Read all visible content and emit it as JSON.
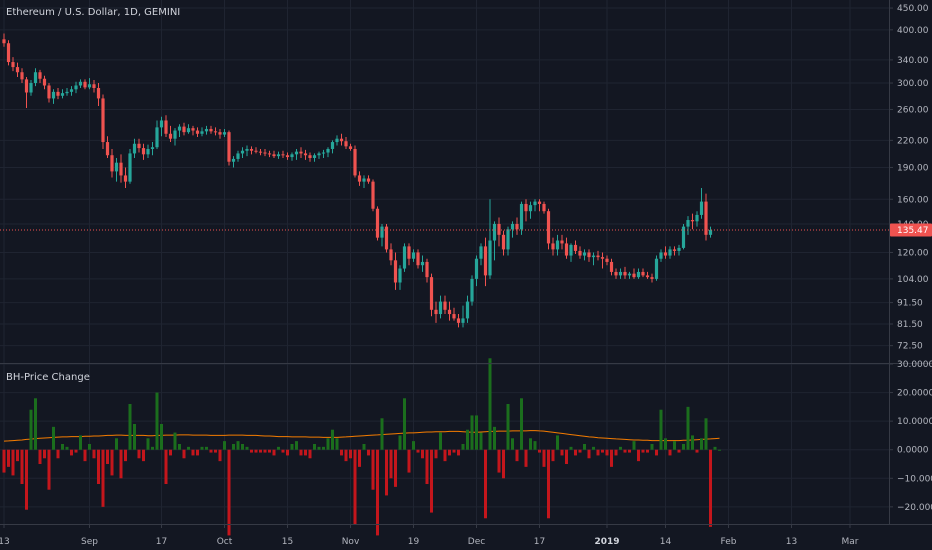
{
  "colors": {
    "background": "#131722",
    "grid": "#1f2431",
    "axis_text": "#b2b5be",
    "up": "#26a69a",
    "down": "#ef5350",
    "hist_up": "#1b6e1d",
    "hist_down": "#c4161c",
    "ma_line": "#f57c00",
    "last_price": "#ef5350"
  },
  "chart_data": [
    {
      "type": "candlestick",
      "title": "Ethereum / U.S. Dollar, 1D, GEMINI",
      "y_scale": "log",
      "ylim": [
        66,
        470
      ],
      "y_ticks": [
        "450.00",
        "400.00",
        "340.00",
        "300.00",
        "260.00",
        "220.00",
        "190.00",
        "160.00",
        "140.00",
        "120.00",
        "104.00",
        "91.50",
        "81.50",
        "72.50"
      ],
      "last_price": "135.47",
      "x_ticks": [
        "13",
        "Sep",
        "17",
        "Oct",
        "15",
        "Nov",
        "19",
        "Dec",
        "17",
        "2019",
        "14",
        "Feb",
        "13",
        "Mar"
      ],
      "x_ticks_bold": [
        "2019"
      ],
      "x_tick_day": [
        0,
        19,
        35,
        49,
        63,
        77,
        91,
        105,
        119,
        134,
        147,
        161,
        175,
        188
      ],
      "grid": true,
      "ohlc": [
        [
          380,
          392,
          365,
          372
        ],
        [
          372,
          378,
          330,
          336
        ],
        [
          336,
          345,
          320,
          327
        ],
        [
          327,
          335,
          310,
          318
        ],
        [
          318,
          325,
          300,
          306
        ],
        [
          306,
          310,
          262,
          285
        ],
        [
          285,
          305,
          280,
          300
        ],
        [
          300,
          325,
          295,
          318
        ],
        [
          318,
          322,
          300,
          307
        ],
        [
          307,
          312,
          290,
          296
        ],
        [
          296,
          300,
          270,
          276
        ],
        [
          276,
          290,
          268,
          286
        ],
        [
          286,
          292,
          275,
          280
        ],
        [
          280,
          290,
          276,
          284
        ],
        [
          284,
          292,
          280,
          286
        ],
        [
          286,
          295,
          280,
          290
        ],
        [
          290,
          302,
          284,
          296
        ],
        [
          296,
          306,
          292,
          302
        ],
        [
          302,
          306,
          290,
          293
        ],
        [
          293,
          308,
          290,
          298
        ],
        [
          298,
          305,
          285,
          292
        ],
        [
          292,
          300,
          265,
          276
        ],
        [
          276,
          282,
          210,
          218
        ],
        [
          218,
          225,
          200,
          203
        ],
        [
          203,
          210,
          180,
          186
        ],
        [
          186,
          200,
          176,
          195
        ],
        [
          195,
          204,
          175,
          182
        ],
        [
          182,
          190,
          170,
          176
        ],
        [
          176,
          210,
          174,
          205
        ],
        [
          205,
          222,
          200,
          216
        ],
        [
          216,
          222,
          206,
          211
        ],
        [
          211,
          216,
          198,
          204
        ],
        [
          204,
          215,
          200,
          210
        ],
        [
          210,
          218,
          203,
          212
        ],
        [
          212,
          245,
          210,
          236
        ],
        [
          236,
          250,
          225,
          245
        ],
        [
          245,
          252,
          224,
          228
        ],
        [
          228,
          238,
          218,
          222
        ],
        [
          222,
          235,
          214,
          232
        ],
        [
          232,
          240,
          224,
          237
        ],
        [
          237,
          242,
          226,
          230
        ],
        [
          230,
          240,
          228,
          235
        ],
        [
          235,
          238,
          226,
          232
        ],
        [
          232,
          236,
          224,
          228
        ],
        [
          228,
          236,
          225,
          231
        ],
        [
          231,
          238,
          227,
          234
        ],
        [
          234,
          238,
          228,
          231
        ],
        [
          231,
          236,
          226,
          230
        ],
        [
          230,
          234,
          222,
          227
        ],
        [
          227,
          234,
          224,
          230
        ],
        [
          230,
          232,
          192,
          196
        ],
        [
          196,
          202,
          190,
          199
        ],
        [
          199,
          208,
          196,
          205
        ],
        [
          205,
          212,
          200,
          208
        ],
        [
          208,
          214,
          202,
          210
        ],
        [
          210,
          213,
          204,
          208
        ],
        [
          208,
          212,
          205,
          207
        ],
        [
          207,
          210,
          203,
          206
        ],
        [
          206,
          210,
          202,
          205
        ],
        [
          205,
          208,
          201,
          204
        ],
        [
          204,
          208,
          200,
          202
        ],
        [
          202,
          207,
          199,
          204
        ],
        [
          204,
          208,
          200,
          203
        ],
        [
          203,
          206,
          198,
          201
        ],
        [
          201,
          206,
          197,
          204
        ],
        [
          204,
          210,
          198,
          207
        ],
        [
          207,
          212,
          200,
          205
        ],
        [
          205,
          209,
          198,
          203
        ],
        [
          203,
          206,
          196,
          200
        ],
        [
          200,
          205,
          196,
          203
        ],
        [
          203,
          207,
          199,
          205
        ],
        [
          205,
          209,
          200,
          206
        ],
        [
          206,
          212,
          201,
          210
        ],
        [
          210,
          220,
          205,
          218
        ],
        [
          218,
          226,
          214,
          222
        ],
        [
          222,
          228,
          214,
          219
        ],
        [
          219,
          224,
          210,
          213
        ],
        [
          213,
          216,
          208,
          210
        ],
        [
          210,
          214,
          180,
          182
        ],
        [
          182,
          186,
          172,
          176
        ],
        [
          176,
          182,
          170,
          179
        ],
        [
          179,
          182,
          174,
          176
        ],
        [
          176,
          178,
          150,
          152
        ],
        [
          152,
          154,
          128,
          130
        ],
        [
          130,
          140,
          124,
          138
        ],
        [
          138,
          140,
          120,
          122
        ],
        [
          122,
          126,
          112,
          115
        ],
        [
          115,
          120,
          98,
          102
        ],
        [
          102,
          112,
          98,
          110
        ],
        [
          110,
          126,
          108,
          124
        ],
        [
          124,
          126,
          112,
          116
        ],
        [
          116,
          122,
          114,
          120
        ],
        [
          120,
          122,
          110,
          112
        ],
        [
          112,
          118,
          108,
          114
        ],
        [
          114,
          116,
          102,
          105
        ],
        [
          105,
          107,
          85,
          88
        ],
        [
          88,
          92,
          82,
          86
        ],
        [
          86,
          95,
          84,
          92
        ],
        [
          92,
          95,
          86,
          88
        ],
        [
          88,
          92,
          83,
          86
        ],
        [
          86,
          89,
          83,
          84
        ],
        [
          84,
          86,
          80,
          82
        ],
        [
          82,
          90,
          80,
          84
        ],
        [
          84,
          95,
          82,
          92
        ],
        [
          92,
          106,
          90,
          104
        ],
        [
          104,
          118,
          100,
          116
        ],
        [
          116,
          126,
          112,
          124
        ],
        [
          124,
          130,
          100,
          106
        ],
        [
          106,
          160,
          104,
          128
        ],
        [
          128,
          142,
          115,
          140
        ],
        [
          140,
          145,
          124,
          132
        ],
        [
          132,
          135,
          118,
          122
        ],
        [
          122,
          138,
          118,
          136
        ],
        [
          136,
          142,
          130,
          140
        ],
        [
          140,
          145,
          132,
          136
        ],
        [
          136,
          158,
          132,
          156
        ],
        [
          156,
          160,
          142,
          150
        ],
        [
          150,
          158,
          144,
          155
        ],
        [
          155,
          160,
          150,
          158
        ],
        [
          158,
          160,
          150,
          156
        ],
        [
          156,
          158,
          148,
          150
        ],
        [
          150,
          152,
          122,
          126
        ],
        [
          126,
          130,
          118,
          122
        ],
        [
          122,
          132,
          118,
          128
        ],
        [
          128,
          132,
          122,
          126
        ],
        [
          126,
          130,
          116,
          118
        ],
        [
          118,
          126,
          114,
          125
        ],
        [
          125,
          128,
          119,
          121
        ],
        [
          121,
          124,
          116,
          118
        ],
        [
          118,
          122,
          115,
          120
        ],
        [
          120,
          122,
          114,
          117
        ],
        [
          117,
          120,
          112,
          118
        ],
        [
          118,
          121,
          115,
          117
        ],
        [
          117,
          120,
          110,
          116
        ],
        [
          116,
          118,
          112,
          114
        ],
        [
          114,
          116,
          106,
          108
        ],
        [
          108,
          110,
          104,
          106
        ],
        [
          106,
          110,
          104,
          108
        ],
        [
          108,
          111,
          104,
          106
        ],
        [
          106,
          108,
          104,
          107
        ],
        [
          107,
          110,
          104,
          105
        ],
        [
          105,
          110,
          104,
          108
        ],
        [
          108,
          110,
          105,
          106
        ],
        [
          106,
          108,
          104,
          105
        ],
        [
          105,
          107,
          102,
          104
        ],
        [
          104,
          118,
          103,
          116
        ],
        [
          116,
          122,
          114,
          120
        ],
        [
          120,
          124,
          116,
          118
        ],
        [
          118,
          124,
          116,
          122
        ],
        [
          122,
          124,
          118,
          121
        ],
        [
          121,
          125,
          118,
          123
        ],
        [
          123,
          140,
          122,
          138
        ],
        [
          138,
          146,
          132,
          143
        ],
        [
          143,
          148,
          136,
          142
        ],
        [
          142,
          150,
          138,
          147
        ],
        [
          147,
          170,
          144,
          158
        ],
        [
          158,
          165,
          128,
          132
        ],
        [
          132,
          138,
          130,
          135.47
        ]
      ]
    },
    {
      "type": "bar",
      "title": "BH-Price Change",
      "ylim": [
        -26,
        30
      ],
      "y_ticks": [
        30,
        20,
        10,
        0,
        -10,
        -20
      ],
      "y_tick_labels": [
        "30.0000",
        "20.0000",
        "10.0000",
        "0.0000",
        "−10.0000",
        "−20.0000"
      ],
      "moving_average": [
        3.0,
        3.1,
        3.2,
        3.3,
        3.4,
        3.6,
        3.7,
        3.9,
        4.0,
        4.1,
        4.2,
        4.3,
        4.4,
        4.5,
        4.5,
        4.6,
        4.6,
        4.6,
        4.7,
        4.7,
        4.8,
        4.8,
        4.9,
        5.0,
        5.0,
        5.1,
        5.1,
        5.0,
        5.0,
        5.0,
        5.0,
        5.0,
        4.9,
        4.9,
        5.0,
        5.0,
        5.1,
        5.1,
        5.1,
        5.2,
        5.2,
        5.2,
        5.1,
        5.1,
        5.1,
        5.1,
        5.0,
        5.0,
        5.0,
        5.0,
        5.1,
        5.1,
        5.1,
        5.1,
        5.0,
        5.0,
        5.0,
        4.9,
        4.8,
        4.8,
        4.7,
        4.6,
        4.6,
        4.6,
        4.5,
        4.5,
        4.5,
        4.5,
        4.4,
        4.4,
        4.4,
        4.3,
        4.3,
        4.3,
        4.3,
        4.4,
        4.5,
        4.6,
        4.7,
        4.8,
        4.9,
        5.0,
        5.1,
        5.2,
        5.3,
        5.4,
        5.5,
        5.6,
        5.7,
        5.8,
        5.9,
        5.9,
        6.0,
        6.1,
        6.2,
        6.2,
        6.3,
        6.3,
        6.3,
        6.4,
        6.4,
        6.4,
        6.3,
        6.2,
        6.1,
        6.1,
        6.2,
        6.3,
        6.4,
        6.4,
        6.5,
        6.5,
        6.5,
        6.6,
        6.6,
        6.6,
        6.6,
        6.7,
        6.7,
        6.6,
        6.5,
        6.3,
        6.1,
        5.9,
        5.7,
        5.5,
        5.3,
        5.1,
        4.9,
        4.7,
        4.5,
        4.4,
        4.2,
        4.1,
        4.0,
        3.9,
        3.8,
        3.7,
        3.6,
        3.5,
        3.4,
        3.4,
        3.3,
        3.3,
        3.2,
        3.2,
        3.2,
        3.2,
        3.2,
        3.2,
        3.2,
        3.3,
        3.3,
        3.4,
        3.5,
        3.6,
        3.7,
        3.8,
        3.9,
        4.0
      ],
      "values": [
        -8,
        -6,
        -9,
        -4,
        -12,
        -21,
        14,
        18,
        -5,
        -3,
        -14,
        8,
        -3,
        2,
        1,
        -2,
        -1,
        5,
        -4,
        2,
        -3,
        -12,
        -20,
        -5,
        -9,
        4,
        -10,
        -4,
        16,
        9,
        -3,
        -4,
        4,
        1,
        20,
        9,
        -12,
        -2,
        6,
        2,
        -3,
        1,
        -2,
        -2,
        1,
        1,
        -1,
        -1,
        -4,
        3,
        -30,
        2,
        3,
        2,
        1,
        -1,
        -1,
        -1,
        -1,
        -1,
        -2,
        1,
        -1,
        -2,
        2,
        3,
        -2,
        -2,
        -3,
        2,
        1,
        1,
        4,
        7,
        4,
        -2,
        -4,
        -3,
        -26,
        -6,
        2,
        -2,
        -14,
        -30,
        11,
        -16,
        -10,
        -13,
        5,
        18,
        -8,
        3,
        -1,
        -3,
        -12,
        -22,
        -3,
        6,
        -4,
        -2,
        -1,
        -2,
        2,
        7,
        12,
        12,
        6,
        -24,
        32,
        8,
        -8,
        -10,
        16,
        4,
        -4,
        18,
        -6,
        4,
        3,
        -1,
        -6,
        -24,
        -4,
        5,
        -2,
        -5,
        1,
        -2,
        -1,
        2,
        -3,
        1,
        -2,
        -1,
        -2,
        -6,
        -2,
        1,
        -1,
        -1,
        3,
        -4,
        -1,
        -1,
        2,
        -2,
        14,
        4,
        -2,
        3,
        -1,
        2,
        15,
        5,
        -1,
        4,
        11,
        -27,
        1,
        0
      ]
    }
  ]
}
